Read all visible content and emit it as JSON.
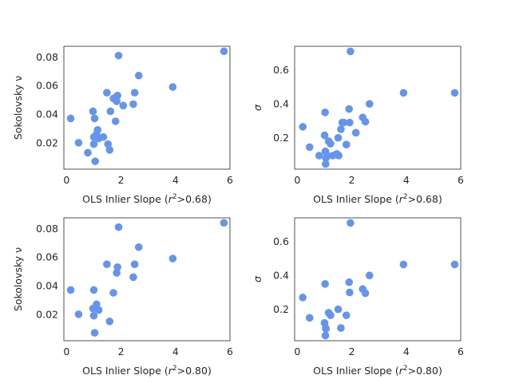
{
  "chart_data": [
    {
      "type": "scatter",
      "xlabel": "OLS Inlier Slope (r²>0.68)",
      "xlabel_base": "OLS Inlier Slope (",
      "xlabel_var": "r",
      "xlabel_sup": "2",
      "xlabel_rest": ">0.68)",
      "ylabel": "Sokolovsky ν",
      "xlim": [
        -0.1,
        6.0
      ],
      "ylim": [
        0.0015,
        0.0875
      ],
      "xticks": [
        0,
        2,
        4,
        6
      ],
      "yticks": [
        0.02,
        0.04,
        0.06,
        0.08
      ],
      "ytick_labels": [
        "0.02",
        "0.04",
        "0.06",
        "0.08"
      ],
      "color": "#6495ED",
      "grid": false,
      "x": [
        0.15,
        0.44,
        0.78,
        0.97,
        1.0,
        1.0,
        1.03,
        1.05,
        1.1,
        1.14,
        1.18,
        1.35,
        1.48,
        1.52,
        1.58,
        1.61,
        1.72,
        1.8,
        1.84,
        1.87,
        1.91,
        2.08,
        2.45,
        2.5,
        2.65,
        3.9,
        5.78
      ],
      "y": [
        0.037,
        0.02,
        0.013,
        0.042,
        0.024,
        0.019,
        0.037,
        0.007,
        0.026,
        0.029,
        0.023,
        0.024,
        0.055,
        0.019,
        0.015,
        0.042,
        0.051,
        0.035,
        0.049,
        0.053,
        0.081,
        0.046,
        0.047,
        0.055,
        0.067,
        0.059,
        0.084
      ]
    },
    {
      "type": "scatter",
      "xlabel": "OLS Inlier Slope (r²>0.68)",
      "xlabel_base": "OLS Inlier Slope (",
      "xlabel_var": "r",
      "xlabel_sup": "2",
      "xlabel_rest": ">0.68)",
      "ylabel": "σ",
      "xlim": [
        -0.1,
        6.0
      ],
      "ylim": [
        0.015,
        0.74
      ],
      "xticks": [
        0,
        2,
        4,
        6
      ],
      "yticks": [
        0.2,
        0.4,
        0.6
      ],
      "ytick_labels": [
        "0.2",
        "0.4",
        "0.6"
      ],
      "color": "#6495ED",
      "grid": false,
      "x": [
        0.2,
        0.45,
        0.8,
        1.0,
        1.02,
        1.03,
        1.04,
        1.05,
        1.1,
        1.15,
        1.22,
        1.3,
        1.45,
        1.5,
        1.52,
        1.6,
        1.65,
        1.7,
        1.8,
        1.9,
        1.92,
        1.95,
        2.15,
        2.4,
        2.5,
        2.65,
        3.9,
        5.78
      ],
      "y": [
        0.265,
        0.145,
        0.095,
        0.215,
        0.35,
        0.12,
        0.045,
        0.08,
        0.095,
        0.18,
        0.165,
        0.095,
        0.105,
        0.2,
        0.095,
        0.25,
        0.29,
        0.29,
        0.16,
        0.37,
        0.29,
        0.71,
        0.23,
        0.32,
        0.295,
        0.4,
        0.465,
        0.465
      ]
    },
    {
      "type": "scatter",
      "xlabel": "OLS Inlier Slope (r²>0.80)",
      "xlabel_base": "OLS Inlier Slope (",
      "xlabel_var": "r",
      "xlabel_sup": "2",
      "xlabel_rest": ">0.80)",
      "ylabel": "Sokolovsky ν",
      "xlim": [
        -0.1,
        6.0
      ],
      "ylim": [
        0.0015,
        0.0875
      ],
      "xticks": [
        0,
        2,
        4,
        6
      ],
      "yticks": [
        0.02,
        0.04,
        0.06,
        0.08
      ],
      "ytick_labels": [
        "0.02",
        "0.04",
        "0.06",
        "0.08"
      ],
      "color": "#6495ED",
      "grid": false,
      "x": [
        0.15,
        0.44,
        0.97,
        1.0,
        1.0,
        1.03,
        1.1,
        1.18,
        1.48,
        1.58,
        1.72,
        1.84,
        1.87,
        1.91,
        2.45,
        2.5,
        2.65,
        3.9,
        5.78
      ],
      "y": [
        0.037,
        0.02,
        0.024,
        0.019,
        0.037,
        0.007,
        0.027,
        0.023,
        0.055,
        0.015,
        0.035,
        0.049,
        0.053,
        0.081,
        0.046,
        0.055,
        0.067,
        0.059,
        0.084
      ]
    },
    {
      "type": "scatter",
      "xlabel": "OLS Inlier Slope (r²>0.80)",
      "xlabel_base": "OLS Inlier Slope (",
      "xlabel_var": "r",
      "xlabel_sup": "2",
      "xlabel_rest": ">0.80)",
      "ylabel": "σ",
      "xlim": [
        -0.1,
        6.0
      ],
      "ylim": [
        0.015,
        0.74
      ],
      "xticks": [
        0,
        2,
        4,
        6
      ],
      "yticks": [
        0.2,
        0.4,
        0.6
      ],
      "ytick_labels": [
        "0.2",
        "0.4",
        "0.6"
      ],
      "color": "#6495ED",
      "grid": false,
      "x": [
        0.2,
        0.45,
        1.0,
        1.02,
        1.03,
        1.04,
        1.05,
        1.15,
        1.22,
        1.5,
        1.6,
        1.8,
        1.9,
        1.92,
        1.95,
        2.4,
        2.5,
        2.65,
        3.9,
        5.78
      ],
      "y": [
        0.27,
        0.15,
        0.12,
        0.35,
        0.045,
        0.09,
        0.085,
        0.18,
        0.165,
        0.2,
        0.09,
        0.165,
        0.36,
        0.3,
        0.71,
        0.32,
        0.295,
        0.4,
        0.465,
        0.465
      ]
    }
  ]
}
